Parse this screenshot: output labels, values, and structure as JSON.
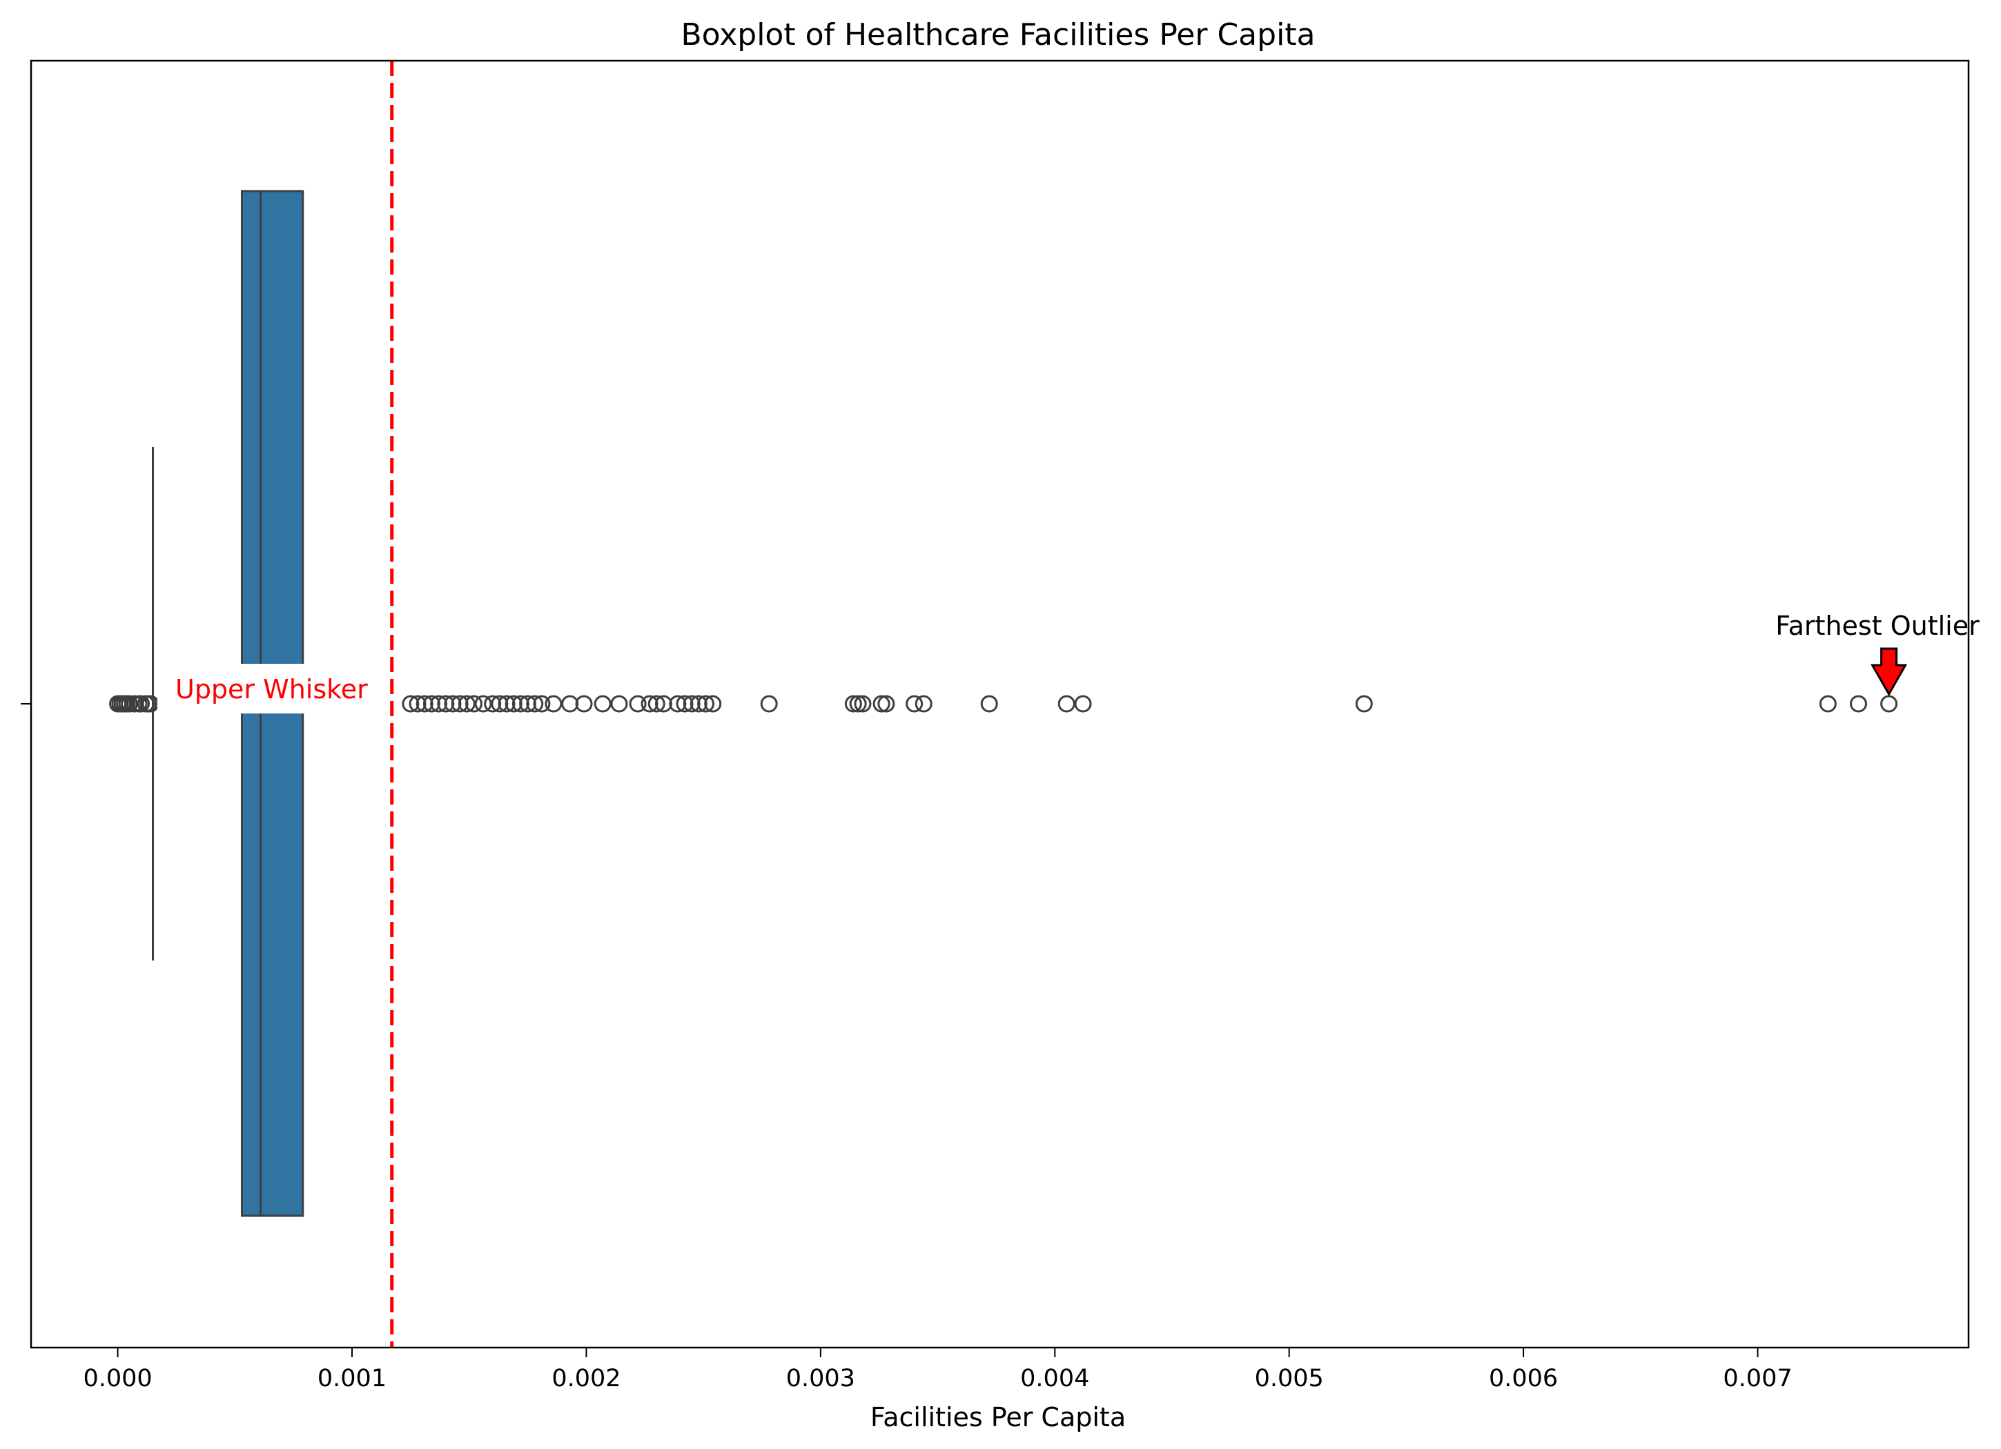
{
  "chart_data": {
    "type": "boxplot",
    "orientation": "horizontal",
    "title": "Boxplot of Healthcare Facilities Per Capita",
    "xlabel": "Facilities Per Capita",
    "ylabel": "",
    "xlim": [
      -0.00037,
      0.0079
    ],
    "x_ticks": [
      0.0,
      0.001,
      0.002,
      0.003,
      0.004,
      0.005,
      0.006,
      0.007
    ],
    "x_tick_labels": [
      "0.000",
      "0.001",
      "0.002",
      "0.003",
      "0.004",
      "0.005",
      "0.006",
      "0.007"
    ],
    "grid": false,
    "box_color": "#3274a1",
    "edge_color": "#3f3f3f",
    "box": {
      "q1": 0.00053,
      "median": 0.00061,
      "q3": 0.00079,
      "whisker": 0.00015
    },
    "outliers": [
      0.0,
      1e-05,
      2e-05,
      3e-05,
      4e-05,
      5e-05,
      7e-05,
      9e-05,
      0.0001,
      0.00012,
      0.00013,
      0.00014,
      0.00125,
      0.00128,
      0.00131,
      0.00134,
      0.00137,
      0.0014,
      0.00143,
      0.00146,
      0.00149,
      0.00152,
      0.00156,
      0.0016,
      0.00163,
      0.00166,
      0.00169,
      0.00172,
      0.00175,
      0.00178,
      0.00181,
      0.00186,
      0.00193,
      0.00199,
      0.00207,
      0.00214,
      0.00222,
      0.00227,
      0.0023,
      0.00233,
      0.00239,
      0.00242,
      0.00245,
      0.00248,
      0.00251,
      0.00254,
      0.00278,
      0.00314,
      0.00316,
      0.00318,
      0.00326,
      0.00328,
      0.0034,
      0.00344,
      0.00372,
      0.00405,
      0.00412,
      0.00532,
      0.0073,
      0.00743,
      0.00756
    ],
    "annotations": {
      "upper_whisker": {
        "text": "Upper Whisker",
        "x": 0.00117,
        "color": "#ff0000"
      },
      "farthest_outlier": {
        "text": "Farthest Outlier",
        "x": 0.00756,
        "arrow_color": "#ff0000"
      }
    }
  }
}
